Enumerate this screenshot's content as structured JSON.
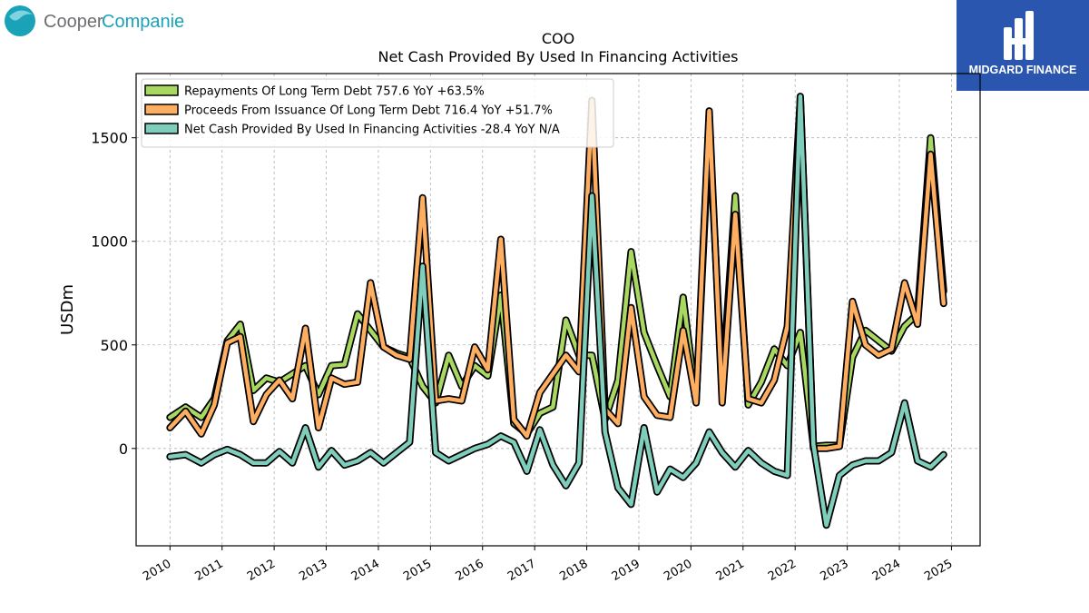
{
  "header": {
    "company_logo_text": "CooperCompanies",
    "company_logo_part1": "Cooper",
    "company_logo_part2": "Companies",
    "brand_logo_text": "MIDGARD FINANCE"
  },
  "colors": {
    "repayments": "#a9d862",
    "proceeds": "#fdae61",
    "net_cash": "#7fcdbb",
    "outline": "#000000",
    "brand_bg": "#2b56b0",
    "cooper_teal": "#1aa3b8",
    "cooper_gray": "#6d6e71"
  },
  "chart_data": {
    "type": "line",
    "title": "COO",
    "subtitle": "Net Cash Provided By Used In Financing Activities",
    "xlabel": "",
    "ylabel": "USDm",
    "ylim": [
      -470,
      1810
    ],
    "xlim": [
      2009.35,
      2025.55
    ],
    "yticks": [
      0,
      500,
      1000,
      1500
    ],
    "xticks": [
      "2010",
      "2011",
      "2012",
      "2013",
      "2014",
      "2015",
      "2016",
      "2017",
      "2018",
      "2019",
      "2020",
      "2021",
      "2022",
      "2023",
      "2024",
      "2025"
    ],
    "grid": true,
    "legend_position": "top-left",
    "series": [
      {
        "name": "Repayments Of Long Term Debt",
        "legend_label": "Repayments Of Long Term Debt  757.6 YoY +63.5%",
        "color_key": "repayments",
        "x": [
          2010.0,
          2010.3,
          2010.6,
          2010.85,
          2011.1,
          2011.35,
          2011.6,
          2011.85,
          2012.1,
          2012.35,
          2012.6,
          2012.85,
          2013.1,
          2013.35,
          2013.6,
          2013.85,
          2014.1,
          2014.35,
          2014.6,
          2014.85,
          2015.1,
          2015.35,
          2015.6,
          2015.85,
          2016.1,
          2016.35,
          2016.6,
          2016.85,
          2017.1,
          2017.35,
          2017.6,
          2017.85,
          2018.1,
          2018.35,
          2018.6,
          2018.85,
          2019.1,
          2019.35,
          2019.6,
          2019.85,
          2020.1,
          2020.35,
          2020.6,
          2020.85,
          2021.1,
          2021.35,
          2021.6,
          2021.85,
          2022.1,
          2022.35,
          2022.6,
          2022.85,
          2023.1,
          2023.35,
          2023.6,
          2023.85,
          2024.1,
          2024.35,
          2024.6,
          2024.85
        ],
        "values": [
          150,
          200,
          150,
          240,
          520,
          600,
          280,
          340,
          320,
          360,
          400,
          260,
          400,
          405,
          650,
          570,
          490,
          460,
          440,
          300,
          220,
          450,
          300,
          400,
          350,
          740,
          120,
          70,
          170,
          200,
          620,
          450,
          450,
          140,
          330,
          950,
          560,
          400,
          250,
          730,
          230,
          1550,
          300,
          1220,
          210,
          320,
          480,
          400,
          560,
          10,
          15,
          15,
          440,
          570,
          520,
          470,
          590,
          650,
          1500,
          760
        ]
      },
      {
        "name": "Proceeds From Issuance Of Long Term Debt",
        "legend_label": "Proceeds From Issuance Of Long Term Debt  716.4 YoY +51.7%",
        "color_key": "proceeds",
        "x": [
          2010.0,
          2010.3,
          2010.6,
          2010.85,
          2011.1,
          2011.35,
          2011.6,
          2011.85,
          2012.1,
          2012.35,
          2012.6,
          2012.85,
          2013.1,
          2013.35,
          2013.6,
          2013.85,
          2014.1,
          2014.35,
          2014.6,
          2014.85,
          2015.1,
          2015.35,
          2015.6,
          2015.85,
          2016.1,
          2016.35,
          2016.6,
          2016.85,
          2017.1,
          2017.35,
          2017.6,
          2017.85,
          2018.1,
          2018.35,
          2018.6,
          2018.85,
          2019.1,
          2019.35,
          2019.6,
          2019.85,
          2020.1,
          2020.35,
          2020.6,
          2020.85,
          2021.1,
          2021.35,
          2021.6,
          2021.85,
          2022.1,
          2022.35,
          2022.6,
          2022.85,
          2023.1,
          2023.35,
          2023.6,
          2023.85,
          2024.1,
          2024.35,
          2024.6,
          2024.85
        ],
        "values": [
          100,
          180,
          70,
          210,
          510,
          540,
          130,
          260,
          330,
          240,
          580,
          100,
          340,
          310,
          320,
          800,
          490,
          450,
          430,
          1210,
          230,
          240,
          230,
          490,
          380,
          1010,
          140,
          60,
          270,
          360,
          450,
          370,
          1680,
          190,
          120,
          680,
          250,
          160,
          150,
          570,
          220,
          1630,
          220,
          1130,
          240,
          220,
          330,
          590,
          1690,
          0,
          0,
          10,
          710,
          500,
          450,
          480,
          800,
          600,
          1420,
          700
        ]
      },
      {
        "name": "Net Cash Provided By Used In Financing Activities",
        "legend_label": "Net Cash Provided By Used In Financing Activities  -28.4 YoY N/A",
        "color_key": "net_cash",
        "x": [
          2010.0,
          2010.3,
          2010.6,
          2010.85,
          2011.1,
          2011.35,
          2011.6,
          2011.85,
          2012.1,
          2012.35,
          2012.6,
          2012.85,
          2013.1,
          2013.35,
          2013.6,
          2013.85,
          2014.1,
          2014.35,
          2014.6,
          2014.85,
          2015.1,
          2015.35,
          2015.6,
          2015.85,
          2016.1,
          2016.35,
          2016.6,
          2016.85,
          2017.1,
          2017.35,
          2017.6,
          2017.85,
          2018.1,
          2018.35,
          2018.6,
          2018.85,
          2019.1,
          2019.35,
          2019.6,
          2019.85,
          2020.1,
          2020.35,
          2020.6,
          2020.85,
          2021.1,
          2021.35,
          2021.6,
          2021.85,
          2022.1,
          2022.35,
          2022.6,
          2022.85,
          2023.1,
          2023.35,
          2023.6,
          2023.85,
          2024.1,
          2024.35,
          2024.6,
          2024.85
        ],
        "values": [
          -40,
          -30,
          -70,
          -30,
          -5,
          -30,
          -70,
          -70,
          -15,
          -70,
          100,
          -90,
          -10,
          -80,
          -60,
          -20,
          -70,
          -20,
          30,
          880,
          -20,
          -60,
          -30,
          0,
          20,
          60,
          30,
          -110,
          90,
          -80,
          -180,
          -70,
          1220,
          80,
          -190,
          -270,
          100,
          -210,
          -100,
          -140,
          -70,
          80,
          -20,
          -90,
          -10,
          -70,
          -110,
          -130,
          1700,
          20,
          -370,
          -130,
          -80,
          -60,
          -60,
          -20,
          220,
          -60,
          -90,
          -30
        ]
      }
    ]
  }
}
